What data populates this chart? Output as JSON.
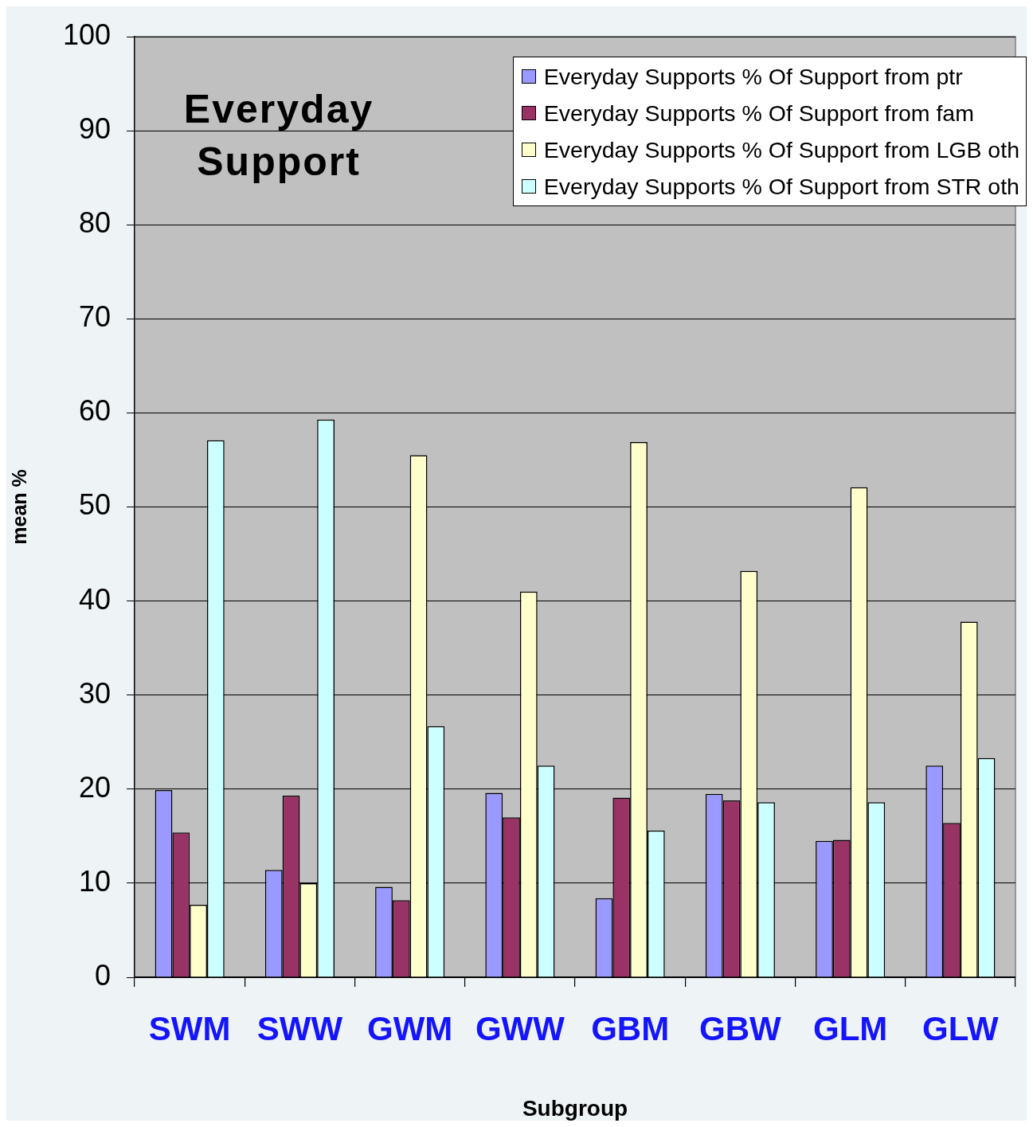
{
  "chart_data": {
    "type": "bar",
    "title": "Everyday Support",
    "xlabel": "Subgroup",
    "ylabel": "mean %",
    "categories": [
      "SWM",
      "SWW",
      "GWM",
      "GWW",
      "GBM",
      "GBW",
      "GLM",
      "GLW"
    ],
    "series": [
      {
        "name": "Everyday Supports % Of Support from ptr",
        "color": "#9999ff",
        "values": [
          19.9,
          11.4,
          9.6,
          19.6,
          8.4,
          19.5,
          14.5,
          22.5
        ]
      },
      {
        "name": "Everyday Supports % Of Support from fam",
        "color": "#993366",
        "values": [
          15.4,
          19.3,
          8.2,
          17.0,
          19.1,
          18.8,
          14.6,
          16.4
        ]
      },
      {
        "name": "Everyday Supports % Of Support from LGB oth",
        "color": "#ffffcc",
        "values": [
          7.7,
          10.0,
          55.5,
          41.0,
          56.9,
          43.2,
          52.1,
          37.8
        ]
      },
      {
        "name": "Everyday Supports % Of Support from STR oth",
        "color": "#ccffff",
        "values": [
          57.1,
          59.3,
          26.7,
          22.5,
          15.6,
          18.6,
          18.6,
          23.3
        ]
      }
    ],
    "ylim": [
      0,
      100
    ],
    "yticks": [
      0,
      10,
      20,
      30,
      40,
      50,
      60,
      70,
      80,
      90,
      100
    ],
    "grid": "y",
    "legend": "top right"
  }
}
